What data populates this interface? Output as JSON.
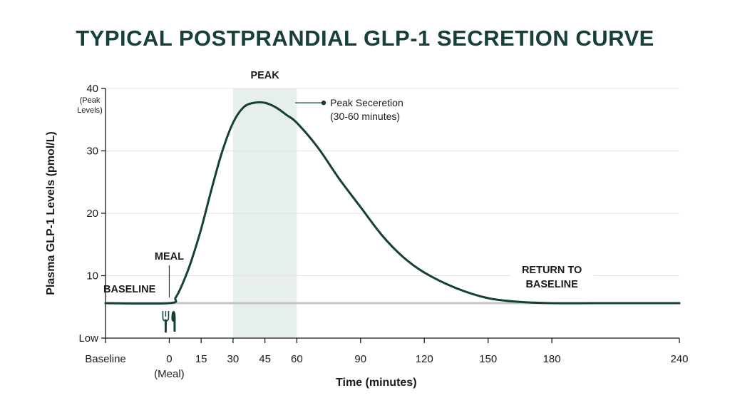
{
  "chart_data": {
    "type": "line",
    "title": "TYPICAL POSTPRANDIAL GLP-1 SECRETION CURVE",
    "xlabel": "Time (minutes)",
    "ylabel": "Plasma GLP-1 Levels (pmol/L)",
    "x_ticks": [
      {
        "value": -30,
        "label": "Baseline"
      },
      {
        "value": 0,
        "label": "0",
        "sublabel": "(Meal)"
      },
      {
        "value": 15,
        "label": "15"
      },
      {
        "value": 30,
        "label": "30"
      },
      {
        "value": 45,
        "label": "45"
      },
      {
        "value": 60,
        "label": "60"
      },
      {
        "value": 90,
        "label": "90"
      },
      {
        "value": 120,
        "label": "120"
      },
      {
        "value": 150,
        "label": "150"
      },
      {
        "value": 180,
        "label": "180"
      },
      {
        "value": 240,
        "label": "240"
      }
    ],
    "y_ticks": [
      {
        "value": 0,
        "label": "Low"
      },
      {
        "value": 10,
        "label": "10"
      },
      {
        "value": 20,
        "label": "20"
      },
      {
        "value": 30,
        "label": "30"
      },
      {
        "value": 40,
        "label": "40",
        "sublabel": [
          "(Peak",
          "Levels)"
        ]
      }
    ],
    "xlim": [
      -30,
      240
    ],
    "ylim": [
      0,
      40
    ],
    "grid": true,
    "baseline_value": 5.6,
    "peak_band": {
      "x_start": 30,
      "x_end": 60,
      "label": "PEAK"
    },
    "series": [
      {
        "x": [
          -30,
          0,
          3,
          6,
          10,
          15,
          20,
          25,
          30,
          35,
          40,
          45,
          50,
          55,
          60,
          70,
          80,
          90,
          100,
          110,
          120,
          135,
          150,
          165,
          180,
          200,
          220,
          240
        ],
        "y": [
          5.6,
          5.6,
          6.5,
          8.5,
          12,
          17.5,
          24,
          30,
          34.5,
          37,
          37.7,
          37.7,
          37,
          35.8,
          34.5,
          30.5,
          25.5,
          21,
          16.5,
          13,
          10.5,
          8,
          6.4,
          5.8,
          5.6,
          5.6,
          5.6,
          5.6
        ]
      }
    ],
    "annotations": {
      "meal": "MEAL",
      "baseline": "BASELINE",
      "peak_secretion": [
        "Peak Seceretion",
        "(30-60 minutes)"
      ],
      "return": [
        "RETURN TO",
        "BASELINE"
      ]
    },
    "colors": {
      "curve": "#143f3a",
      "peak_band": "#e6efec",
      "baseline_line": "#c4c4c4",
      "grid": "#e2e2e2",
      "axis": "#1a1a1a",
      "title": "#17403a"
    }
  },
  "icons": {
    "meal": "fork-knife-icon"
  }
}
